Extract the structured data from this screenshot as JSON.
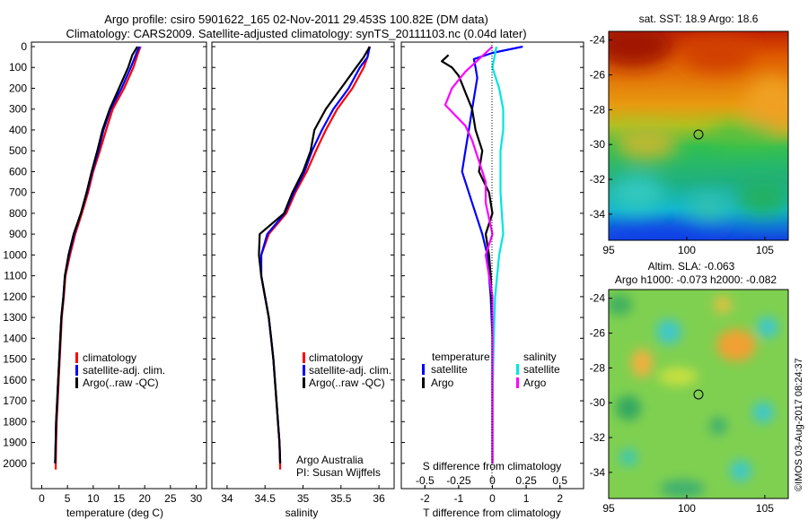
{
  "title_line1": "Argo profile: csiro 5901622_165 02-Nov-2011 29.453S 100.82E (DM data)",
  "title_line2": "Climatology: CARS2009. Satellite-adjusted climatology: synTS_20111103.nc (0.04d later)",
  "colors": {
    "climatology": "#ff0000",
    "satellite": "#0000ff",
    "argo": "#000000",
    "sal_satellite": "#00e5e5",
    "sal_argo": "#ff00ff"
  },
  "depth_ticks": [
    "0",
    "100",
    "200",
    "300",
    "400",
    "500",
    "600",
    "700",
    "800",
    "900",
    "1000",
    "1100",
    "1200",
    "1300",
    "1400",
    "1500",
    "1600",
    "1700",
    "1800",
    "1900",
    "2000"
  ],
  "panel_temp": {
    "xlabel": "temperature (deg C)",
    "xticks": [
      "0",
      "5",
      "10",
      "15",
      "20",
      "25",
      "30"
    ],
    "legend": [
      "climatology",
      "satellite-adj. clim.",
      "Argo(..raw -QC)"
    ]
  },
  "panel_sal": {
    "xlabel": "salinity",
    "xticks": [
      "34",
      "34.5",
      "35",
      "35.5",
      "36"
    ],
    "legend": [
      "climatology",
      "satellite-adj. clim.",
      "Argo(..raw -QC)"
    ],
    "note1": "Argo Australia",
    "note2": "PI: Susan Wijffels"
  },
  "panel_diff": {
    "xlabel_bottom": "T difference from climatology",
    "xlabel_top": "S difference from climatology",
    "xticks_t": [
      "-2",
      "-1",
      "0",
      "1",
      "2"
    ],
    "xticks_s": [
      "-0.5",
      "-0.25",
      "0",
      "0.25",
      "0.5"
    ],
    "legend_temp_title": "temperature",
    "legend_sal_title": "salinity",
    "legend_temp": [
      "satellite",
      "Argo"
    ],
    "legend_sal": [
      "satellite",
      "Argo"
    ]
  },
  "map_sst": {
    "title": "sat. SST: 18.9 Argo: 18.6",
    "yticks": [
      "-24",
      "-26",
      "-28",
      "-30",
      "-32",
      "-34"
    ],
    "xticks": [
      "95",
      "100",
      "105"
    ]
  },
  "map_sla": {
    "title1": "Altim. SLA: -0.063",
    "title2": "Argo h1000: -0.073 h2000: -0.082",
    "yticks": [
      "-24",
      "-26",
      "-28",
      "-30",
      "-32",
      "-34"
    ],
    "xticks": [
      "95",
      "100",
      "105"
    ]
  },
  "credit": "©IMOS 03-Aug-2017 08:24:37",
  "chart_data": [
    {
      "type": "line",
      "name": "temperature profile",
      "xlabel": "temperature (deg C)",
      "ylabel": "",
      "xlim": [
        -2,
        32
      ],
      "ylim": [
        2100,
        0
      ],
      "series": [
        {
          "name": "climatology",
          "color": "#ff0000",
          "x": [
            19.2,
            18.8,
            17.8,
            16.0,
            13.8,
            12.5,
            11.3,
            10.0,
            9.0,
            7.8,
            6.5,
            5.5,
            4.6,
            4.3,
            3.9,
            3.7,
            3.5,
            3.3,
            3.1,
            2.9,
            2.8,
            2.7
          ],
          "y": [
            0,
            25,
            100,
            200,
            300,
            400,
            500,
            600,
            700,
            800,
            900,
            1000,
            1100,
            1200,
            1300,
            1400,
            1500,
            1600,
            1700,
            1800,
            1900,
            2030
          ]
        },
        {
          "name": "satellite-adj. clim.",
          "color": "#0000ff",
          "x": [
            19.0,
            18.5,
            17.3,
            15.5,
            13.4,
            12.0,
            11.0,
            9.8,
            8.8,
            7.6,
            6.3,
            5.3,
            4.5,
            4.2,
            3.8,
            3.6,
            3.4,
            3.2,
            3.0,
            2.8,
            2.7,
            2.6
          ],
          "y": [
            0,
            25,
            100,
            200,
            300,
            400,
            500,
            600,
            700,
            800,
            900,
            1000,
            1100,
            1200,
            1300,
            1400,
            1500,
            1600,
            1700,
            1800,
            1900,
            2000
          ]
        },
        {
          "name": "Argo(..raw -QC)",
          "color": "#000000",
          "x": [
            18.6,
            17.6,
            16.8,
            15.0,
            13.2,
            11.8,
            10.8,
            9.7,
            8.7,
            7.6,
            6.2,
            5.2,
            4.5,
            4.2,
            3.8,
            3.6,
            3.4,
            3.2,
            3.0,
            2.8,
            2.7,
            2.6
          ],
          "y": [
            0,
            40,
            100,
            200,
            300,
            400,
            500,
            600,
            700,
            800,
            900,
            1000,
            1100,
            1200,
            1300,
            1400,
            1500,
            1600,
            1700,
            1800,
            1900,
            2000
          ]
        }
      ]
    },
    {
      "type": "line",
      "name": "salinity profile",
      "xlabel": "salinity",
      "ylabel": "",
      "xlim": [
        33.8,
        36.2
      ],
      "ylim": [
        2100,
        0
      ],
      "series": [
        {
          "name": "climatology",
          "color": "#ff0000",
          "x": [
            35.87,
            35.85,
            35.8,
            35.65,
            35.45,
            35.3,
            35.17,
            35.05,
            34.9,
            34.78,
            34.55,
            34.45,
            34.45,
            34.5,
            34.55,
            34.58,
            34.61,
            34.63,
            34.65,
            34.67,
            34.69,
            34.7
          ],
          "y": [
            0,
            50,
            100,
            200,
            300,
            400,
            500,
            600,
            700,
            800,
            900,
            1000,
            1100,
            1200,
            1300,
            1400,
            1500,
            1600,
            1700,
            1800,
            1900,
            2030
          ]
        },
        {
          "name": "satellite-adj. clim.",
          "color": "#0000ff",
          "x": [
            35.88,
            35.85,
            35.75,
            35.6,
            35.4,
            35.25,
            35.12,
            35.02,
            34.88,
            34.76,
            34.53,
            34.45,
            34.45,
            34.5,
            34.55,
            34.58,
            34.61,
            34.63,
            34.65,
            34.67,
            34.69,
            34.7
          ],
          "y": [
            0,
            50,
            100,
            200,
            300,
            400,
            500,
            600,
            700,
            800,
            900,
            1000,
            1100,
            1200,
            1300,
            1400,
            1500,
            1600,
            1700,
            1800,
            1900,
            2000
          ]
        },
        {
          "name": "Argo(..raw -QC)",
          "color": "#000000",
          "x": [
            35.88,
            35.8,
            35.7,
            35.5,
            35.3,
            35.15,
            35.1,
            35.0,
            34.86,
            34.75,
            34.43,
            34.42,
            34.45,
            34.5,
            34.55,
            34.58,
            34.61,
            34.63,
            34.65,
            34.67,
            34.69,
            34.7
          ],
          "y": [
            0,
            50,
            100,
            200,
            300,
            400,
            500,
            600,
            700,
            800,
            900,
            1000,
            1100,
            1200,
            1300,
            1400,
            1500,
            1600,
            1700,
            1800,
            1900,
            2000
          ]
        }
      ]
    },
    {
      "type": "line",
      "name": "difference from climatology",
      "xlabel": "T difference from climatology",
      "x2label": "S difference from climatology",
      "ylabel": "",
      "xlim": [
        -2.7,
        2.7
      ],
      "ylim": [
        2100,
        0
      ],
      "series": [
        {
          "name": "temperature satellite",
          "color": "#0000ff",
          "x": [
            0.9,
            0.0,
            -0.55,
            -0.5,
            -0.45,
            -0.5,
            -0.6,
            -0.7,
            -0.8,
            -0.9,
            -0.6,
            -0.3,
            -0.15,
            -0.1,
            -0.05,
            0,
            0,
            0,
            0,
            0
          ],
          "y": [
            0,
            30,
            60,
            100,
            150,
            200,
            300,
            400,
            500,
            600,
            750,
            900,
            1000,
            1100,
            1200,
            1400,
            1600,
            1800,
            1900,
            2000
          ]
        },
        {
          "name": "temperature Argo",
          "color": "#000000",
          "x": [
            -1.3,
            -1.5,
            -1.2,
            -1.0,
            -0.9,
            -0.8,
            -0.6,
            -0.5,
            -0.3,
            -0.4,
            -0.1,
            0,
            -0.2,
            -0.1,
            -0.05,
            0,
            0,
            0,
            0
          ],
          "y": [
            40,
            70,
            100,
            140,
            180,
            220,
            300,
            400,
            500,
            600,
            700,
            800,
            900,
            1000,
            1100,
            1300,
            1500,
            1700,
            2000
          ]
        },
        {
          "name": "salinity satellite",
          "color": "#00e5e5",
          "x": [
            0.03,
            0.0,
            0.05,
            0.08,
            0.08,
            0.06,
            0.06,
            0.06,
            0.07,
            0.08,
            0.05,
            0.02,
            0.01,
            0.0,
            0.0
          ],
          "y": [
            0,
            100,
            200,
            300,
            400,
            500,
            600,
            700,
            800,
            900,
            1000,
            1200,
            1400,
            1700,
            2000
          ]
        },
        {
          "name": "salinity Argo",
          "color": "#ff00ff",
          "x": [
            0.0,
            -0.2,
            -0.3,
            -0.35,
            -0.2,
            -0.15,
            -0.1,
            -0.05,
            -0.05,
            0.0,
            -0.05,
            0.0,
            0.0,
            0.0
          ],
          "y": [
            0,
            120,
            200,
            280,
            380,
            450,
            550,
            650,
            750,
            900,
            1000,
            1200,
            1500,
            2000
          ]
        }
      ]
    }
  ]
}
